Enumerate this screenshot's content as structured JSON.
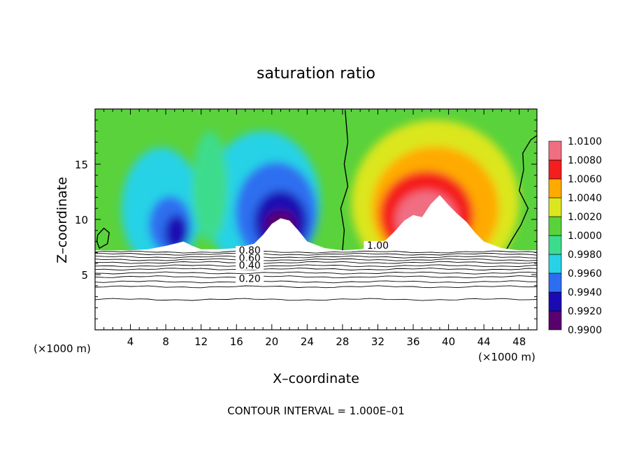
{
  "chart_data": {
    "type": "heatmap",
    "title": "saturation ratio",
    "xlabel": "X–coordinate",
    "ylabel": "Z–coordinate",
    "x_unit_left": "(×1000 m)",
    "x_unit_right": "(×1000 m)",
    "xlim": [
      0,
      50
    ],
    "ylim": [
      0,
      20
    ],
    "xticks": [
      4,
      8,
      12,
      16,
      20,
      24,
      28,
      32,
      36,
      40,
      44,
      48
    ],
    "yticks": [
      5,
      10,
      15
    ],
    "colorbar": {
      "levels": [
        "0.9900",
        "0.9920",
        "0.9940",
        "0.9960",
        "0.9980",
        "1.0000",
        "1.0020",
        "1.0040",
        "1.0060",
        "1.0080",
        "1.0100"
      ],
      "colors": [
        "#5a006e",
        "#1a0ab4",
        "#2d6ef0",
        "#28d2e6",
        "#3cdc8c",
        "#5ad23c",
        "#dce61e",
        "#ffaa00",
        "#f51e1e",
        "#f06e82"
      ]
    },
    "contour_interval_text": "CONTOUR INTERVAL = 1.000E–01",
    "contour_labels": [
      "0.80",
      "0.60",
      "0.40",
      "0.20",
      "1.00"
    ],
    "terrain": {
      "x": [
        0,
        4,
        6,
        8,
        10,
        11,
        12,
        14,
        16,
        18,
        19,
        20,
        21,
        22,
        23,
        24,
        26,
        28,
        30,
        32,
        33,
        34,
        35,
        36,
        37,
        38,
        39,
        40,
        41,
        42,
        43,
        44,
        46,
        48,
        50
      ],
      "z": [
        7.2,
        7.2,
        7.3,
        7.6,
        8.0,
        7.6,
        7.3,
        7.3,
        7.4,
        7.8,
        8.6,
        9.6,
        10.1,
        9.9,
        9.0,
        8.0,
        7.4,
        7.2,
        7.3,
        7.6,
        8.2,
        9.0,
        9.9,
        10.4,
        10.2,
        11.4,
        12.2,
        11.3,
        10.5,
        9.8,
        8.8,
        8.0,
        7.4,
        7.2,
        7.2
      ]
    }
  }
}
